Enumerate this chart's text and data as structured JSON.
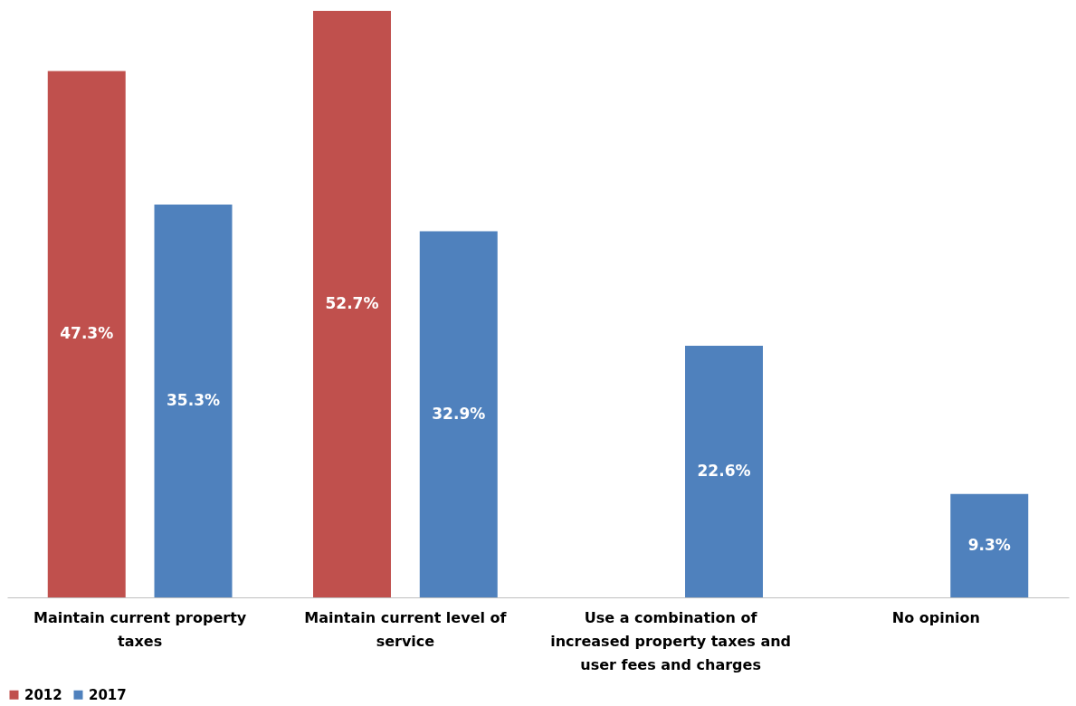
{
  "chart_data": {
    "type": "bar",
    "categories": [
      "Maintain current property taxes",
      "Maintain current level of service",
      "Use a combination of increased property taxes and user fees and charges",
      "No opinion"
    ],
    "series": [
      {
        "name": "2012",
        "color": "#c0504d",
        "values": [
          47.3,
          52.7,
          null,
          null
        ],
        "value_labels": [
          "47.3%",
          "52.7%",
          null,
          null
        ]
      },
      {
        "name": "2017",
        "color": "#4f81bd",
        "values": [
          35.3,
          32.9,
          22.6,
          9.3
        ],
        "value_labels": [
          "35.3%",
          "32.9%",
          "22.6%",
          "9.3%"
        ]
      }
    ],
    "ylim": [
      0,
      52.7
    ],
    "grid": false,
    "legend": "bottom"
  }
}
